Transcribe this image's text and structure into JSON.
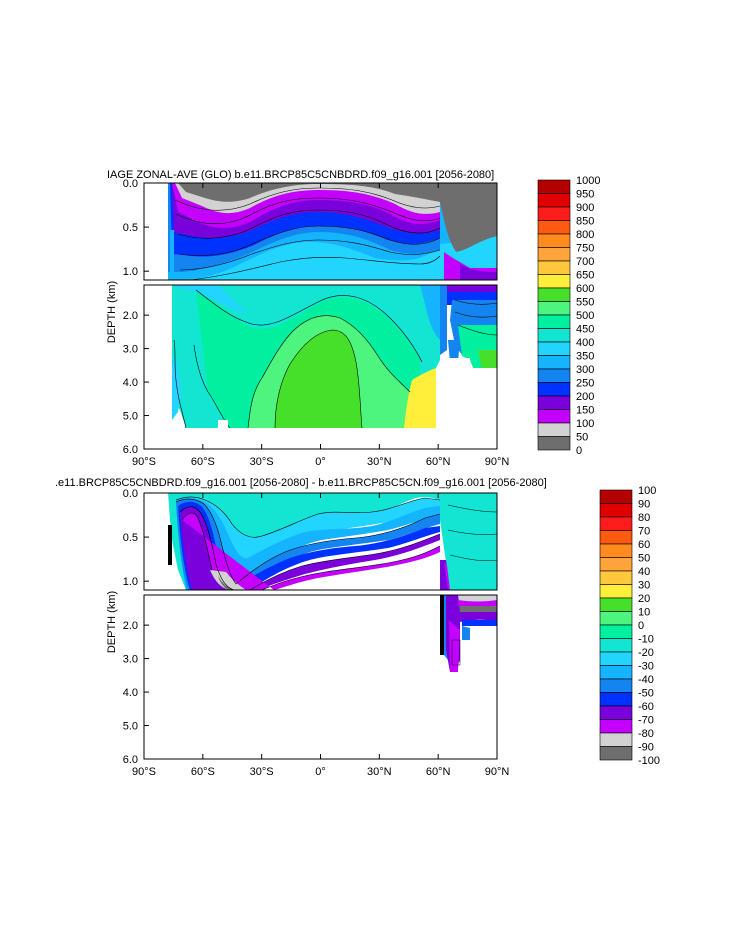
{
  "chart_data": [
    {
      "type": "contour",
      "title": "IAGE ZONAL-AVE (GLO) b.e11.BRCP85C5CNBDRD.f09_g16.001 [2056-2080]",
      "xlabel": "",
      "ylabel": "DEPTH (km)",
      "xlim": [
        -90,
        90
      ],
      "ylim_upper": [
        0.0,
        1.1
      ],
      "ylim_lower": [
        1.1,
        6.0
      ],
      "x_ticks": [
        -90,
        -60,
        -30,
        0,
        30,
        60,
        90
      ],
      "x_tick_labels": [
        "90°S",
        "60°S",
        "30°S",
        "0°",
        "30°N",
        "60°N",
        "90°N"
      ],
      "y_ticks_upper": [
        0.0,
        0.5,
        1.0
      ],
      "y_tick_labels_upper": [
        "0.0",
        "0.5",
        "1.0"
      ],
      "y_ticks_lower": [
        2.0,
        3.0,
        4.0,
        5.0,
        6.0
      ],
      "y_tick_labels_lower": [
        "2.0",
        "3.0",
        "4.0",
        "5.0",
        "6.0"
      ],
      "colorbar": {
        "labels": [
          "1000",
          "950",
          "900",
          "850",
          "800",
          "750",
          "700",
          "650",
          "600",
          "550",
          "500",
          "450",
          "400",
          "350",
          "300",
          "250",
          "200",
          "150",
          "100",
          "50",
          "0"
        ],
        "colors": [
          "#b40000",
          "#e00000",
          "#ff1c1c",
          "#ff5a10",
          "#ff8a1e",
          "#ffa43a",
          "#ffc83c",
          "#ffef3a",
          "#46e02a",
          "#4df57f",
          "#00f0a0",
          "#12e6d2",
          "#22d5ff",
          "#14b4ff",
          "#1384f0",
          "#0032ff",
          "#7a00dc",
          "#c400ff",
          "#d2d2d2",
          "#6e6e6e"
        ]
      },
      "field_summary": {
        "surface_layer": [
          0,
          50
        ],
        "thermocline_range": [
          100,
          300
        ],
        "deep_pacific_max_band": [
          550,
          600
        ],
        "deep_north_atlantic_band": [
          300,
          450
        ]
      }
    },
    {
      "type": "contour",
      "title": ".e11.BRCP85C5CNBDRD.f09_g16.001 [2056-2080] - b.e11.BRCP85C5CN.f09_g16.001 [2056-2080]",
      "xlabel": "",
      "ylabel": "DEPTH (km)",
      "xlim": [
        -90,
        90
      ],
      "ylim_upper": [
        0.0,
        1.1
      ],
      "ylim_lower": [
        1.1,
        6.0
      ],
      "x_ticks": [
        -90,
        -60,
        -30,
        0,
        30,
        60,
        90
      ],
      "x_tick_labels": [
        "90°S",
        "60°S",
        "30°S",
        "0°",
        "30°N",
        "60°N",
        "90°N"
      ],
      "y_ticks_upper": [
        0.0,
        0.5,
        1.0
      ],
      "y_tick_labels_upper": [
        "0.0",
        "0.5",
        "1.0"
      ],
      "y_ticks_lower": [
        2.0,
        3.0,
        4.0,
        5.0,
        6.0
      ],
      "y_tick_labels_lower": [
        "2.0",
        "3.0",
        "4.0",
        "5.0",
        "6.0"
      ],
      "colorbar": {
        "labels": [
          "100",
          "90",
          "80",
          "70",
          "60",
          "50",
          "40",
          "30",
          "20",
          "10",
          "0",
          "-10",
          "-20",
          "-30",
          "-40",
          "-50",
          "-60",
          "-70",
          "-80",
          "-90",
          "-100"
        ],
        "colors": [
          "#b40000",
          "#e00000",
          "#ff1c1c",
          "#ff5a10",
          "#ff8a1e",
          "#ffa43a",
          "#ffc83c",
          "#ffef3a",
          "#46e02a",
          "#4df57f",
          "#00f0a0",
          "#12e6d2",
          "#22d5ff",
          "#14b4ff",
          "#1384f0",
          "#0032ff",
          "#7a00dc",
          "#c400ff",
          "#d2d2d2",
          "#6e6e6e"
        ]
      },
      "field_summary": {
        "upper_ocean_range": [
          -10,
          0
        ],
        "thermocline_min": [
          -100,
          -80
        ],
        "north_atlantic_deep_min": [
          -80,
          -60
        ]
      }
    }
  ]
}
